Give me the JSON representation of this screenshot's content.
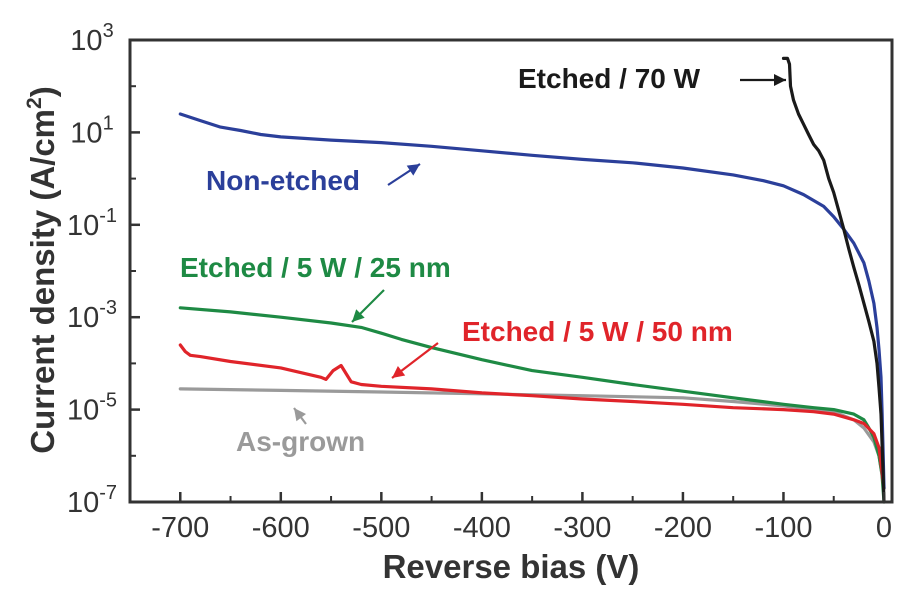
{
  "chart_data": {
    "type": "line",
    "xlabel": "Reverse bias (V)",
    "ylabel": "Current density (A/cm²)",
    "ylabel_parts": {
      "main": "Current density (A/cm",
      "sup": "2",
      "close": ")"
    },
    "xlim": [
      -750,
      0
    ],
    "ylim": [
      1e-07,
      1000
    ],
    "yscale": "log",
    "grid": false,
    "x_ticks": [
      -700,
      -600,
      -500,
      -400,
      -300,
      -200,
      -100,
      0
    ],
    "x_tick_labels": [
      "-700",
      "-600",
      "-500",
      "-400",
      "-300",
      "-200",
      "-100",
      "0"
    ],
    "y_ticks": [
      {
        "value": 1e-07,
        "base": "10",
        "exp": "-7"
      },
      {
        "value": 1e-05,
        "base": "10",
        "exp": "-5"
      },
      {
        "value": 0.001,
        "base": "10",
        "exp": "-3"
      },
      {
        "value": 0.1,
        "base": "10",
        "exp": "-1"
      },
      {
        "value": 10,
        "base": "10",
        "exp": "1"
      },
      {
        "value": 1000,
        "base": "10",
        "exp": "3"
      }
    ],
    "series": [
      {
        "name": "Non-etched",
        "color": "#2b3f9a",
        "x": [
          -700,
          -680,
          -660,
          -640,
          -620,
          -600,
          -550,
          -500,
          -450,
          -400,
          -350,
          -300,
          -250,
          -200,
          -150,
          -120,
          -100,
          -80,
          -60,
          -50,
          -40,
          -30,
          -20,
          -15,
          -10,
          -7,
          -5,
          -3,
          -2,
          -1,
          0
        ],
        "y": [
          25,
          18,
          13,
          11,
          9,
          8,
          6.8,
          6,
          5,
          4,
          3.2,
          2.6,
          2.2,
          1.7,
          1.2,
          0.9,
          0.7,
          0.45,
          0.25,
          0.15,
          0.08,
          0.04,
          0.015,
          0.006,
          0.002,
          0.0006,
          0.0002,
          5e-05,
          1e-05,
          1.5e-06,
          2e-07
        ]
      },
      {
        "name": "Etched / 70 W",
        "color": "#1a1a1a",
        "x": [
          -100,
          -96,
          -94,
          -93,
          -90,
          -85,
          -80,
          -75,
          -70,
          -65,
          -60,
          -55,
          -50,
          -45,
          -40,
          -35,
          -30,
          -25,
          -20,
          -15,
          -10,
          -7,
          -5,
          -3,
          -2,
          -1,
          0
        ],
        "y": [
          400,
          400,
          300,
          100,
          50,
          25,
          15,
          9,
          5.5,
          4,
          2.5,
          1,
          0.5,
          0.2,
          0.08,
          0.03,
          0.012,
          0.005,
          0.002,
          0.0008,
          0.0003,
          0.0001,
          3e-05,
          8e-06,
          2e-06,
          5e-07,
          1e-07
        ]
      },
      {
        "name": "Etched / 5 W / 25 nm",
        "color": "#1e8a44",
        "x": [
          -700,
          -650,
          -600,
          -550,
          -520,
          -500,
          -480,
          -450,
          -400,
          -350,
          -300,
          -250,
          -200,
          -150,
          -100,
          -70,
          -50,
          -30,
          -20,
          -15,
          -10,
          -5,
          -2,
          0
        ],
        "y": [
          0.0016,
          0.0013,
          0.001,
          0.00075,
          0.0006,
          0.00045,
          0.00033,
          0.00022,
          0.00012,
          7e-05,
          5e-05,
          3.5e-05,
          2.5e-05,
          1.8e-05,
          1.3e-05,
          1.1e-05,
          1e-05,
          8e-06,
          6e-06,
          4e-06,
          2.5e-06,
          1e-06,
          4e-07,
          1e-07
        ]
      },
      {
        "name": "Etched / 5 W / 50 nm",
        "color": "#e0242a",
        "x": [
          -700,
          -695,
          -690,
          -680,
          -650,
          -600,
          -560,
          -555,
          -548,
          -540,
          -535,
          -530,
          -520,
          -500,
          -450,
          -400,
          -350,
          -300,
          -250,
          -200,
          -150,
          -100,
          -70,
          -50,
          -30,
          -20,
          -10,
          -5,
          0
        ],
        "y": [
          0.00025,
          0.00018,
          0.00015,
          0.00014,
          0.00011,
          8e-05,
          5e-05,
          4.5e-05,
          7e-05,
          9e-05,
          6e-05,
          4e-05,
          3.5e-05,
          3.2e-05,
          2.8e-05,
          2.3e-05,
          2e-05,
          1.7e-05,
          1.5e-05,
          1.3e-05,
          1.1e-05,
          1e-05,
          9e-06,
          8e-06,
          6e-06,
          5e-06,
          3e-06,
          1.5e-06,
          2e-07
        ]
      },
      {
        "name": "As-grown",
        "color": "#9a9a9a",
        "x": [
          -700,
          -600,
          -500,
          -400,
          -300,
          -200,
          -150,
          -100,
          -50,
          -30,
          -20,
          -10,
          -5,
          0
        ],
        "y": [
          2.8e-05,
          2.6e-05,
          2.4e-05,
          2.2e-05,
          2e-05,
          1.8e-05,
          1.5e-05,
          1.2e-05,
          9e-06,
          6e-06,
          4e-06,
          2e-06,
          1e-06,
          2e-07
        ]
      }
    ],
    "annotations": [
      {
        "text": "Etched / 70 W",
        "color": "#1a1a1a",
        "series": "Etched / 70 W"
      },
      {
        "text": "Non-etched",
        "color": "#2b3f9a",
        "series": "Non-etched"
      },
      {
        "text": "Etched / 5 W / 25 nm",
        "color": "#1e8a44",
        "series": "Etched / 5 W / 25 nm"
      },
      {
        "text": "Etched / 5 W / 50 nm",
        "color": "#e0242a",
        "series": "Etched / 5 W / 50 nm"
      },
      {
        "text": "As-grown",
        "color": "#9a9a9a",
        "series": "As-grown"
      }
    ]
  }
}
